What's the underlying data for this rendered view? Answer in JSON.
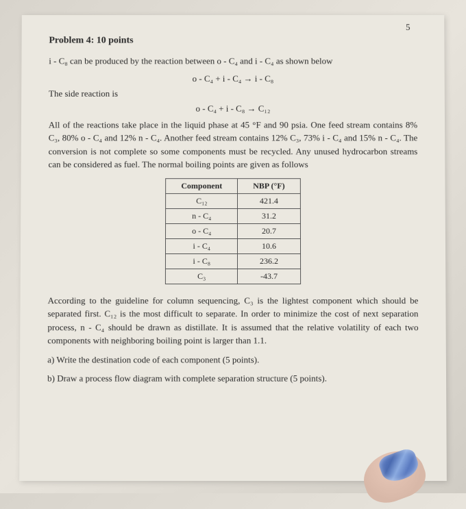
{
  "page_number": "5",
  "problem_title": "Problem 4: 10 points",
  "intro_text": "i - C₈ can be produced by the reaction between o - C₄ and i - C₄ as shown below",
  "equation1": "o - C₄ + i - C₄ → i - C₈",
  "side_reaction_label": "The side reaction is",
  "equation2": "o - C₄ + i - C₈ → C₁₂",
  "paragraph1": "All of the reactions take place in the liquid phase at 45 °F and 90 psia. One feed stream contains 8% C₃, 80% o - C₄ and 12% n - C₄. Another feed stream contains 12% C₃, 73% i - C₄ and 15% n - C₄. The conversion is not complete so some components must be recycled. Any unused hydrocarbon streams can be considered as fuel. The normal boiling points are given as follows",
  "table": {
    "header_col1": "Component",
    "header_col2": "NBP (°F)",
    "rows": [
      {
        "comp": "C₁₂",
        "nbp": "421.4"
      },
      {
        "comp": "n - C₄",
        "nbp": "31.2"
      },
      {
        "comp": "o - C₄",
        "nbp": "20.7"
      },
      {
        "comp": "i - C₄",
        "nbp": "10.6"
      },
      {
        "comp": "i - C₈",
        "nbp": "236.2"
      },
      {
        "comp": "C₃",
        "nbp": "-43.7"
      }
    ]
  },
  "paragraph2": "According to the guideline for column sequencing, C₃ is the lightest component which should be separated first. C₁₂ is the most difficult to separate. In order to minimize the cost of next separation process, n - C₄ should be drawn as distillate. It is assumed that the relative volatility of each two components with neighboring boiling point is larger than 1.1.",
  "question_a": "a) Write the destination code of each component (5 points).",
  "question_b": "b) Draw a process flow diagram with complete separation structure (5 points)."
}
